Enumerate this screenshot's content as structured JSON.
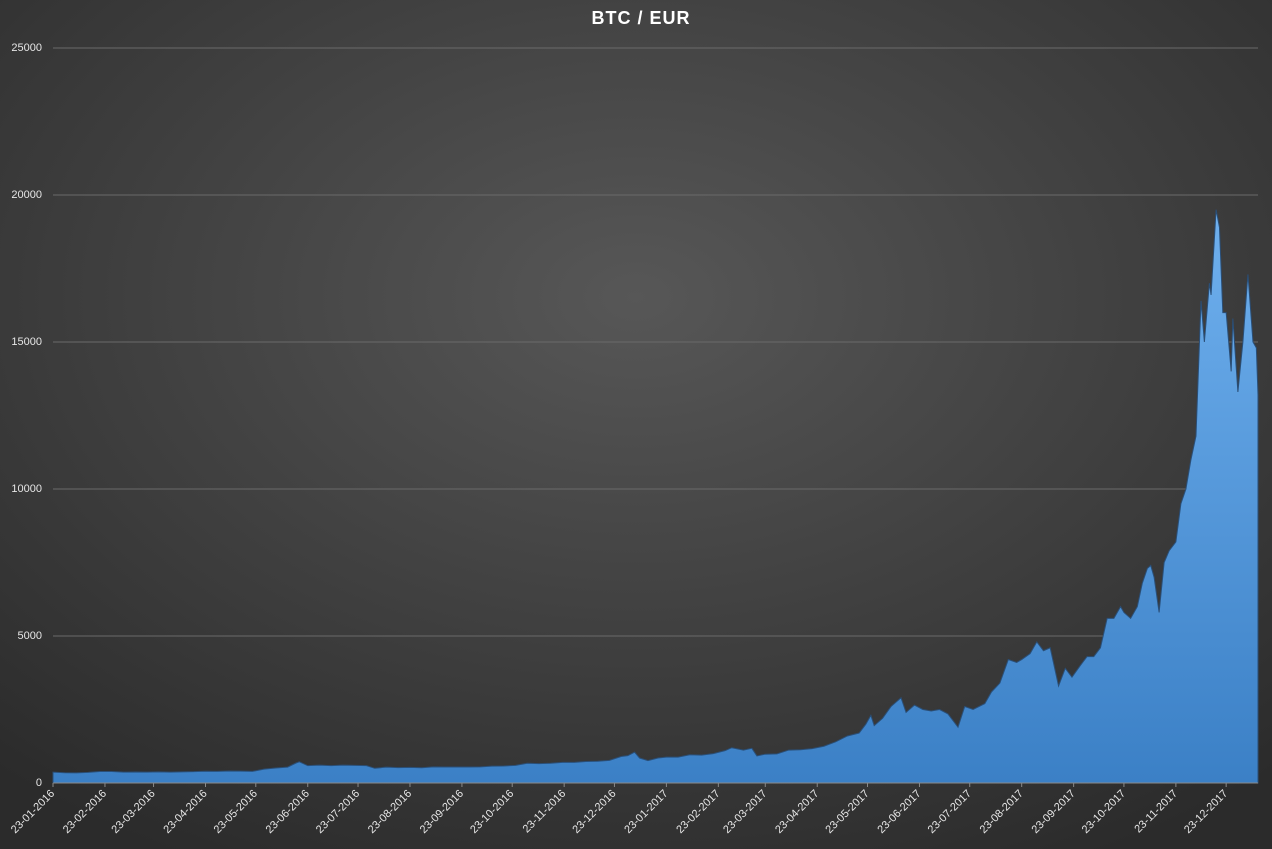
{
  "chart_data": {
    "type": "area",
    "title": "BTC / EUR",
    "x": [
      "23-01-2016",
      "30-01-2016",
      "06-02-2016",
      "13-02-2016",
      "20-02-2016",
      "27-02-2016",
      "05-03-2016",
      "12-03-2016",
      "19-03-2016",
      "26-03-2016",
      "02-04-2016",
      "09-04-2016",
      "16-04-2016",
      "23-04-2016",
      "30-04-2016",
      "07-05-2016",
      "14-05-2016",
      "21-05-2016",
      "28-05-2016",
      "04-06-2016",
      "11-06-2016",
      "16-06-2016",
      "18-06-2016",
      "23-06-2016",
      "30-06-2016",
      "07-07-2016",
      "14-07-2016",
      "21-07-2016",
      "28-07-2016",
      "02-08-2016",
      "09-08-2016",
      "16-08-2016",
      "23-08-2016",
      "30-08-2016",
      "06-09-2016",
      "13-09-2016",
      "20-09-2016",
      "27-09-2016",
      "04-10-2016",
      "11-10-2016",
      "18-10-2016",
      "25-10-2016",
      "01-11-2016",
      "08-11-2016",
      "15-11-2016",
      "22-11-2016",
      "29-11-2016",
      "06-12-2016",
      "13-12-2016",
      "20-12-2016",
      "27-12-2016",
      "31-12-2016",
      "04-01-2017",
      "07-01-2017",
      "12-01-2017",
      "18-01-2017",
      "23-01-2017",
      "30-01-2017",
      "06-02-2017",
      "13-02-2017",
      "20-02-2017",
      "27-02-2017",
      "03-03-2017",
      "10-03-2017",
      "15-03-2017",
      "18-03-2017",
      "23-03-2017",
      "30-03-2017",
      "06-04-2017",
      "13-04-2017",
      "20-04-2017",
      "27-04-2017",
      "04-05-2017",
      "11-05-2017",
      "18-05-2017",
      "22-05-2017",
      "25-05-2017",
      "27-05-2017",
      "01-06-2017",
      "06-06-2017",
      "12-06-2017",
      "15-06-2017",
      "20-06-2017",
      "25-06-2017",
      "30-06-2017",
      "05-07-2017",
      "10-07-2017",
      "16-07-2017",
      "20-07-2017",
      "25-07-2017",
      "01-08-2017",
      "05-08-2017",
      "10-08-2017",
      "15-08-2017",
      "20-08-2017",
      "23-08-2017",
      "28-08-2017",
      "01-09-2017",
      "05-09-2017",
      "09-09-2017",
      "14-09-2017",
      "18-09-2017",
      "22-09-2017",
      "27-09-2017",
      "01-10-2017",
      "05-10-2017",
      "09-10-2017",
      "13-10-2017",
      "17-10-2017",
      "21-10-2017",
      "23-10-2017",
      "27-10-2017",
      "31-10-2017",
      "03-11-2017",
      "06-11-2017",
      "08-11-2017",
      "10-11-2017",
      "13-11-2017",
      "16-11-2017",
      "19-11-2017",
      "23-11-2017",
      "26-11-2017",
      "29-11-2017",
      "02-12-2017",
      "05-12-2017",
      "08-12-2017",
      "10-12-2017",
      "13-12-2017",
      "14-12-2017",
      "17-12-2017",
      "19-12-2017",
      "21-12-2017",
      "23-12-2017",
      "26-12-2017",
      "27-12-2017",
      "30-12-2017",
      "02-01-2018",
      "05-01-2018",
      "08-01-2018",
      "10-01-2018",
      "11-01-2018"
    ],
    "values": [
      370,
      350,
      345,
      360,
      390,
      390,
      370,
      375,
      370,
      380,
      370,
      380,
      385,
      400,
      395,
      410,
      405,
      395,
      470,
      510,
      540,
      680,
      720,
      590,
      610,
      590,
      610,
      600,
      590,
      500,
      540,
      525,
      530,
      520,
      550,
      545,
      545,
      545,
      550,
      575,
      580,
      600,
      670,
      660,
      670,
      700,
      700,
      730,
      740,
      770,
      900,
      930,
      1050,
      850,
      760,
      850,
      880,
      880,
      960,
      950,
      1000,
      1100,
      1200,
      1120,
      1180,
      920,
      980,
      990,
      1120,
      1130,
      1170,
      1250,
      1400,
      1600,
      1700,
      2000,
      2300,
      1950,
      2200,
      2600,
      2900,
      2400,
      2650,
      2500,
      2450,
      2500,
      2350,
      1900,
      2600,
      2500,
      2700,
      3100,
      3400,
      4200,
      4100,
      4200,
      4400,
      4800,
      4500,
      4600,
      3300,
      3900,
      3600,
      4000,
      4300,
      4300,
      4600,
      5600,
      5600,
      6000,
      5800,
      5600,
      6000,
      6800,
      7300,
      7400,
      7000,
      5800,
      7500,
      7900,
      8200,
      9500,
      10000,
      11000,
      11800,
      16400,
      15000,
      17000,
      16600,
      19500,
      18900,
      16000,
      16000,
      14000,
      15800,
      13300,
      15000,
      17300,
      15000,
      14800,
      13200
    ],
    "color": "#4a8fd8",
    "xlim": [
      "23-01-2016",
      "11-01-2018"
    ],
    "xticks": [
      "23-01-2016",
      "23-02-2016",
      "23-03-2016",
      "23-04-2016",
      "23-05-2016",
      "23-06-2016",
      "23-07-2016",
      "23-08-2016",
      "23-09-2016",
      "23-10-2016",
      "23-11-2016",
      "23-12-2016",
      "23-01-2017",
      "23-02-2017",
      "23-03-2017",
      "23-04-2017",
      "23-05-2017",
      "23-06-2017",
      "23-07-2017",
      "23-08-2017",
      "23-09-2017",
      "23-10-2017",
      "23-11-2017",
      "23-12-2017"
    ],
    "ylim": [
      0,
      25000
    ],
    "yticks": [
      0,
      5000,
      10000,
      15000,
      20000,
      25000
    ],
    "grid": true
  }
}
